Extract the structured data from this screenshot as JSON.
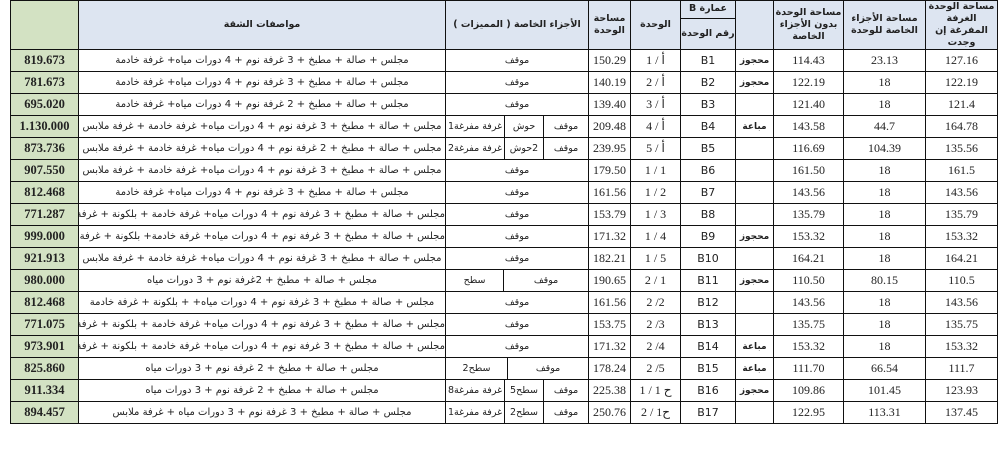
{
  "headers": {
    "total_area": "مساحة الوحدة الغرفة المفرغة إن وجدت",
    "private_area": "مساحة الأجزاء الخاصة للوحدة",
    "area_without_private": "مساحة الوحدة بدون الأجزاء الخاصة",
    "status": "",
    "building": "عمارة B",
    "unit_no": "رقم الوحدة",
    "unit": "الوحدة",
    "unit_area": "مساحة الوحدة",
    "private_parts": "الأجزاء الخاصة ( المميزات )",
    "specs": "مواصفات الشقة",
    "price": ""
  },
  "colors": {
    "header_bg": "#dde5f1",
    "price_bg": "#d3e2c3"
  },
  "rows": [
    {
      "total": "127.16",
      "private": "23.13",
      "without": "114.43",
      "status": "محجوز",
      "unit_no": "B1",
      "unit": "1 / أ",
      "area": "150.29",
      "parts": [
        "موقف"
      ],
      "spec": "مجلس + صالة + مطبخ + 3 غرفة نوم + 4 دورات مياه+ غرفة خادمة",
      "price": "819.673"
    },
    {
      "total": "122.19",
      "private": "18",
      "without": "122.19",
      "status": "محجوز",
      "unit_no": "B2",
      "unit": "2 / أ",
      "area": "140.19",
      "parts": [
        "موقف"
      ],
      "spec": "مجلس + صالة + مطبخ + 3 غرفة نوم + 4 دورات مياه+ غرفة خادمة",
      "price": "781.673"
    },
    {
      "total": "121.4",
      "private": "18",
      "without": "121.40",
      "status": "",
      "unit_no": "B3",
      "unit": "3 / أ",
      "area": "139.40",
      "parts": [
        "موقف"
      ],
      "spec": "مجلس + صالة + مطبخ + 2 غرفة نوم + 4 دورات مياه+ غرفة خادمة",
      "price": "695.020"
    },
    {
      "total": "164.78",
      "private": "44.7",
      "without": "143.58",
      "status": "مباعة",
      "unit_no": "B4",
      "unit": "4 / أ",
      "area": "209.48",
      "parts": [
        "موقف",
        "حوش",
        "غرفة مفرغة1"
      ],
      "spec": "مجلس + صالة + مطبخ + 3 غرفة نوم + 4 دورات مياه+ غرفة خادمة + غرفة ملابس",
      "price": "1.130.000"
    },
    {
      "total": "135.56",
      "private": "104.39",
      "without": "116.69",
      "status": "",
      "unit_no": "B5",
      "unit": "5 / أ",
      "area": "239.95",
      "parts": [
        "موقف",
        "2حوش",
        "غرفة مفرغة2"
      ],
      "spec": "مجلس + صالة + مطبخ + 2 غرفة نوم + 4 دورات مياه+ غرفة خادمة + غرفة ملابس",
      "price": "873.736"
    },
    {
      "total": "161.5",
      "private": "18",
      "without": "161.50",
      "status": "",
      "unit_no": "B6",
      "unit": "1 / 1",
      "area": "179.50",
      "parts": [
        "موقف"
      ],
      "spec": "مجلس + صالة + مطبخ + 3 غرفة نوم + 4 دورات مياه+ غرفة خادمة + غرفة ملابس",
      "price": "907.550"
    },
    {
      "total": "143.56",
      "private": "18",
      "without": "143.56",
      "status": "",
      "unit_no": "B7",
      "unit": "1 / 2",
      "area": "161.56",
      "parts": [
        "موقف"
      ],
      "spec": "مجلس + صالة + مطبخ + 3 غرفة نوم + 4 دورات مياه+ غرفة خادمة",
      "price": "812.468"
    },
    {
      "total": "135.79",
      "private": "18",
      "without": "135.79",
      "status": "",
      "unit_no": "B8",
      "unit": "1 / 3",
      "area": "153.79",
      "parts": [
        "موقف"
      ],
      "spec": "مجلس + صالة + مطبخ + 3 غرفة نوم + 4 دورات مياه+ غرفة خادمة + بلكونة + غرفة ملابس",
      "price": "771.287"
    },
    {
      "total": "153.32",
      "private": "18",
      "without": "153.32",
      "status": "محجوز",
      "unit_no": "B9",
      "unit": "1 / 4",
      "area": "171.32",
      "parts": [
        "موقف"
      ],
      "spec": "مجلس + صالة + مطبخ + 3 غرفة نوم + 4 دورات مياه+ غرفة خادمة+ بلكونة + غرفة ملابس",
      "price": "999.000"
    },
    {
      "total": "164.21",
      "private": "18",
      "without": "164.21",
      "status": "",
      "unit_no": "B10",
      "unit": "1 / 5",
      "area": "182.21",
      "parts": [
        "موقف"
      ],
      "spec": "مجلس + صالة + مطبخ + 3 غرفة نوم + 4 دورات مياه+ غرفة خادمة + غرفة ملابس",
      "price": "921.913"
    },
    {
      "total": "110.5",
      "private": "80.15",
      "without": "110.50",
      "status": "محجوز",
      "unit_no": "B11",
      "unit": "2 / 1",
      "area": "190.65",
      "parts": [
        "موقف",
        "سطح"
      ],
      "spec": "مجلس + صالة + مطبخ + 2غرفة نوم + 3 دورات مياه",
      "price": "980.000"
    },
    {
      "total": "143.56",
      "private": "18",
      "without": "143.56",
      "status": "",
      "unit_no": "B12",
      "unit": "2 /2",
      "area": "161.56",
      "parts": [
        "موقف"
      ],
      "spec": "مجلس + صالة + مطبخ + 3 غرفة نوم + 4 دورات مياه+ + بلكونة + غرفة خادمة",
      "price": "812.468"
    },
    {
      "total": "135.75",
      "private": "18",
      "without": "135.75",
      "status": "",
      "unit_no": "B13",
      "unit": "2 /3",
      "area": "153.75",
      "parts": [
        "موقف"
      ],
      "spec": "مجلس + صالة + مطبخ + 3 غرفة نوم + 4 دورات مياه+ غرفة خادمة + بلكونة + غرفة ملابس",
      "price": "771.075"
    },
    {
      "total": "153.32",
      "private": "18",
      "without": "153.32",
      "status": "مباعة",
      "unit_no": "B14",
      "unit": "2 /4",
      "area": "171.32",
      "parts": [
        "موقف"
      ],
      "spec": "مجلس + صالة + مطبخ + 3 غرفة نوم + 4 دورات مياه+ غرفة خادمة + بلكونة + غرفة ملابس",
      "price": "973.901"
    },
    {
      "total": "111.7",
      "private": "66.54",
      "without": "111.70",
      "status": "مباعة",
      "unit_no": "B15",
      "unit": "2 /5",
      "area": "178.24",
      "parts": [
        "موقف",
        "سطح2"
      ],
      "spec": "مجلس + صالة + مطبخ + 2 غرفة نوم + 3 دورات مياه",
      "price": "825.860"
    },
    {
      "total": "123.93",
      "private": "101.45",
      "without": "109.86",
      "status": "محجوز",
      "unit_no": "B16",
      "unit": "1 / ح 1",
      "area": "225.38",
      "parts": [
        "موقف",
        "سطح5",
        "غرفة مفرغة8"
      ],
      "spec": "مجلس + صالة + مطبخ + 2 غرفة نوم + 3 دورات مياه",
      "price": "911.334"
    },
    {
      "total": "137.45",
      "private": "113.31",
      "without": "122.95",
      "status": "",
      "unit_no": "B17",
      "unit": "2 / ح1",
      "area": "250.76",
      "parts": [
        "موقف",
        "سطح2",
        "غرفة مفرغة1"
      ],
      "spec": "مجلس + صالة + مطبخ + 3 غرفة نوم + 3 دورات مياه + غرفة ملابس",
      "price": "894.457"
    }
  ]
}
